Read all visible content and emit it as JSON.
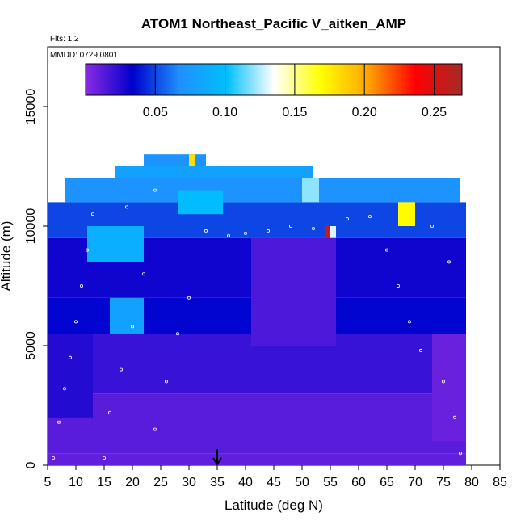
{
  "chart_data": {
    "type": "heatmap",
    "title": "ATOM1 Northeast_Pacific V_aitken_AMP",
    "notes": {
      "flights": "Flts: 1,2",
      "dates": "MMDD: 0729,0801"
    },
    "xlabel": "Latitude (deg N)",
    "ylabel": "Altitude (m)",
    "xlim": [
      5,
      85
    ],
    "ylim": [
      0,
      17500
    ],
    "xticks": [
      5,
      10,
      15,
      20,
      25,
      30,
      35,
      40,
      45,
      50,
      55,
      60,
      65,
      70,
      75,
      80,
      85
    ],
    "yticks": [
      0,
      5000,
      10000,
      15000
    ],
    "colorbar": {
      "range": [
        0,
        0.27
      ],
      "ticks": [
        0.05,
        0.1,
        0.15,
        0.2,
        0.25
      ],
      "tick_labels": [
        "0.05",
        "0.10",
        "0.15",
        "0.20",
        "0.25"
      ],
      "colors": [
        "#8a2be2",
        "#0000cd",
        "#1e90ff",
        "#00bfff",
        "#ffffff",
        "#ffff00",
        "#ffa500",
        "#ff0000",
        "#a52a2a"
      ]
    },
    "marker": {
      "latitude": 35,
      "altitude": 0,
      "shape": "arrow-down"
    },
    "cells": [
      {
        "lat0": 5,
        "lat1": 79,
        "alt0": 0,
        "alt1": 500,
        "value": 0.01
      },
      {
        "lat0": 5,
        "lat1": 79,
        "alt0": 500,
        "alt1": 3000,
        "value": 0.012
      },
      {
        "lat0": 5,
        "lat1": 79,
        "alt0": 3000,
        "alt1": 5500,
        "value": 0.02
      },
      {
        "lat0": 5,
        "lat1": 79,
        "alt0": 5500,
        "alt1": 7000,
        "value": 0.035
      },
      {
        "lat0": 5,
        "lat1": 79,
        "alt0": 7000,
        "alt1": 9500,
        "value": 0.03
      },
      {
        "lat0": 5,
        "lat1": 79,
        "alt0": 9500,
        "alt1": 11000,
        "value": 0.05
      },
      {
        "lat0": 8,
        "lat1": 78,
        "alt0": 11000,
        "alt1": 12000,
        "value": 0.07
      },
      {
        "lat0": 17,
        "lat1": 52,
        "alt0": 12000,
        "alt1": 12500,
        "value": 0.08
      },
      {
        "lat0": 22,
        "lat1": 33,
        "alt0": 12500,
        "alt1": 13000,
        "value": 0.07
      },
      {
        "lat0": 12,
        "lat1": 22,
        "alt0": 8500,
        "alt1": 10000,
        "value": 0.09
      },
      {
        "lat0": 16,
        "lat1": 22,
        "alt0": 5500,
        "alt1": 7000,
        "value": 0.08
      },
      {
        "lat0": 28,
        "lat1": 36,
        "alt0": 10500,
        "alt1": 11500,
        "value": 0.1
      },
      {
        "lat0": 30,
        "lat1": 31,
        "alt0": 12500,
        "alt1": 13000,
        "value": 0.18
      },
      {
        "lat0": 50,
        "lat1": 53,
        "alt0": 11000,
        "alt1": 12000,
        "value": 0.12
      },
      {
        "lat0": 54,
        "lat1": 55,
        "alt0": 9500,
        "alt1": 10000,
        "value": 0.26
      },
      {
        "lat0": 55,
        "lat1": 56,
        "alt0": 9500,
        "alt1": 10000,
        "value": 0.13
      },
      {
        "lat0": 67,
        "lat1": 70,
        "alt0": 10000,
        "alt1": 11000,
        "value": 0.17
      },
      {
        "lat0": 41,
        "lat1": 56,
        "alt0": 5000,
        "alt1": 9500,
        "value": 0.015
      },
      {
        "lat0": 73,
        "lat1": 79,
        "alt0": 1000,
        "alt1": 5500,
        "value": 0.008
      },
      {
        "lat0": 5,
        "lat1": 13,
        "alt0": 2000,
        "alt1": 5500,
        "value": 0.025
      }
    ],
    "points": [
      {
        "lat": 6,
        "alt": 300
      },
      {
        "lat": 7,
        "alt": 1800
      },
      {
        "lat": 8,
        "alt": 3200
      },
      {
        "lat": 9,
        "alt": 4500
      },
      {
        "lat": 10,
        "alt": 6000
      },
      {
        "lat": 11,
        "alt": 7500
      },
      {
        "lat": 12,
        "alt": 9000
      },
      {
        "lat": 13,
        "alt": 10500
      },
      {
        "lat": 15,
        "alt": 300
      },
      {
        "lat": 16,
        "alt": 2200
      },
      {
        "lat": 18,
        "alt": 4000
      },
      {
        "lat": 20,
        "alt": 5800
      },
      {
        "lat": 22,
        "alt": 8000
      },
      {
        "lat": 24,
        "alt": 1500
      },
      {
        "lat": 26,
        "alt": 3500
      },
      {
        "lat": 28,
        "alt": 5500
      },
      {
        "lat": 30,
        "alt": 7000
      },
      {
        "lat": 33,
        "alt": 9800
      },
      {
        "lat": 37,
        "alt": 9600
      },
      {
        "lat": 40,
        "alt": 9700
      },
      {
        "lat": 44,
        "alt": 9800
      },
      {
        "lat": 48,
        "alt": 10000
      },
      {
        "lat": 52,
        "alt": 9900
      },
      {
        "lat": 58,
        "alt": 10300
      },
      {
        "lat": 62,
        "alt": 10400
      },
      {
        "lat": 65,
        "alt": 9000
      },
      {
        "lat": 67,
        "alt": 7500
      },
      {
        "lat": 69,
        "alt": 6000
      },
      {
        "lat": 71,
        "alt": 4800
      },
      {
        "lat": 75,
        "alt": 3500
      },
      {
        "lat": 77,
        "alt": 2000
      },
      {
        "lat": 78,
        "alt": 500
      },
      {
        "lat": 76,
        "alt": 8500
      },
      {
        "lat": 73,
        "alt": 10000
      },
      {
        "lat": 19,
        "alt": 10800
      },
      {
        "lat": 24,
        "alt": 11500
      }
    ]
  }
}
